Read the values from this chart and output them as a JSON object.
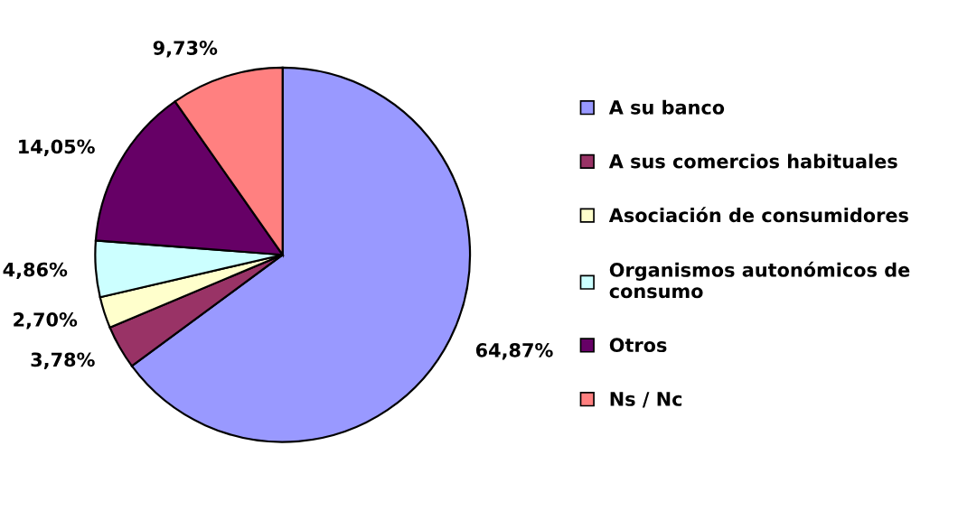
{
  "chart_data": {
    "type": "pie",
    "categories": [
      "A su banco",
      "A sus comercios habituales",
      "Asociación de consumidores",
      "Organismos autonómicos de consumo",
      "Otros",
      "Ns / Nc"
    ],
    "values": [
      64.87,
      3.78,
      2.7,
      4.86,
      14.05,
      9.73
    ],
    "value_labels": [
      "64,87%",
      "3,78%",
      "2,70%",
      "4,86%",
      "14,05%",
      "9,73%"
    ],
    "colors": [
      "#9999ff",
      "#993366",
      "#ffffcc",
      "#ccffff",
      "#660066",
      "#ff8080"
    ],
    "legend": "right"
  }
}
